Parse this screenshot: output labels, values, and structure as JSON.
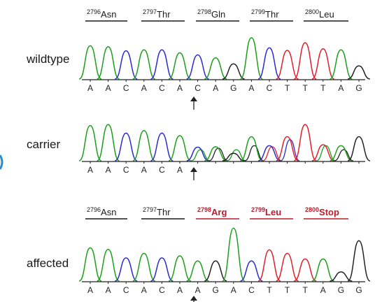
{
  "colors": {
    "A": "#1aa01a",
    "C": "#2a2ad0",
    "G": "#222222",
    "T": "#e0202a",
    "mutation_label": "#c0192a",
    "normal_label": "#1a1a1a",
    "axis": "#222222"
  },
  "codon_sets": [
    {
      "id": "top",
      "codons": [
        {
          "num": "2796",
          "aa": "Asn",
          "mutant": false
        },
        {
          "num": "2797",
          "aa": "Thr",
          "mutant": false
        },
        {
          "num": "2798",
          "aa": "Gln",
          "mutant": false
        },
        {
          "num": "2799",
          "aa": "Thr",
          "mutant": false
        },
        {
          "num": "2800",
          "aa": "Leu",
          "mutant": false
        }
      ]
    },
    {
      "id": "bottom",
      "codons": [
        {
          "num": "2796",
          "aa": "Asn",
          "mutant": false
        },
        {
          "num": "2797",
          "aa": "Thr",
          "mutant": false
        },
        {
          "num": "2798",
          "aa": "Arg",
          "mutant": true
        },
        {
          "num": "2799",
          "aa": "Leu",
          "mutant": true
        },
        {
          "num": "2800",
          "aa": "Stop",
          "mutant": true
        }
      ]
    }
  ],
  "traces": [
    {
      "label": "wildtype",
      "bases": [
        "A",
        "A",
        "C",
        "A",
        "C",
        "A",
        "C",
        "A",
        "G",
        "A",
        "C",
        "T",
        "T",
        "T",
        "A",
        "G"
      ],
      "peaks": [
        {
          "b": "A",
          "h": 0.66
        },
        {
          "b": "A",
          "h": 0.64
        },
        {
          "b": "C",
          "h": 0.56
        },
        {
          "b": "A",
          "h": 0.58
        },
        {
          "b": "C",
          "h": 0.58
        },
        {
          "b": "A",
          "h": 0.52
        },
        {
          "b": "C",
          "h": 0.48
        },
        {
          "b": "A",
          "h": 0.42
        },
        {
          "b": "G",
          "h": 0.3
        },
        {
          "b": "A",
          "h": 0.82
        },
        {
          "b": "C",
          "h": 0.62
        },
        {
          "b": "T",
          "h": 0.57
        },
        {
          "b": "T",
          "h": 0.72
        },
        {
          "b": "T",
          "h": 0.6
        },
        {
          "b": "A",
          "h": 0.58
        },
        {
          "b": "G",
          "h": 0.26
        }
      ]
    },
    {
      "label": "carrier",
      "bases": [
        "A",
        "A",
        "C",
        "A",
        "C",
        "A"
      ],
      "peaks": [
        {
          "b": "A",
          "h": 0.7
        },
        {
          "b": "A",
          "h": 0.72
        },
        {
          "b": "C",
          "h": 0.55
        },
        {
          "b": "A",
          "h": 0.6
        },
        {
          "b": "C",
          "h": 0.55
        },
        {
          "b": "A",
          "h": 0.5
        },
        {
          "b": "C",
          "h": 0.27
        },
        {
          "b": "A",
          "h": 0.28
        },
        {
          "b": "G",
          "h": 0.15
        },
        {
          "b": "A",
          "h": 0.48
        },
        {
          "b": "C",
          "h": 0.3
        },
        {
          "b": "T",
          "h": 0.48
        },
        {
          "b": "T",
          "h": 0.72
        },
        {
          "b": "T",
          "h": 0.32
        },
        {
          "b": "A",
          "h": 0.3
        },
        {
          "b": "G",
          "h": 0.48
        }
      ],
      "secondary": [
        {
          "i": 6,
          "b": "A",
          "h": 0.22
        },
        {
          "i": 7,
          "b": "G",
          "h": 0.25
        },
        {
          "i": 8,
          "b": "A",
          "h": 0.22
        },
        {
          "i": 9,
          "b": "G",
          "h": 0.3
        },
        {
          "i": 10,
          "b": "T",
          "h": 0.28
        },
        {
          "i": 11,
          "b": "C",
          "h": 0.42
        },
        {
          "i": 13,
          "b": "A",
          "h": 0.3
        },
        {
          "i": 14,
          "b": "G",
          "h": 0.22
        }
      ]
    },
    {
      "label": "affected",
      "bases": [
        "A",
        "A",
        "C",
        "A",
        "C",
        "A",
        "A",
        "G",
        "A",
        "C",
        "T",
        "T",
        "T",
        "A",
        "G",
        "G"
      ],
      "peaks": [
        {
          "b": "A",
          "h": 0.66
        },
        {
          "b": "A",
          "h": 0.63
        },
        {
          "b": "C",
          "h": 0.46
        },
        {
          "b": "A",
          "h": 0.55
        },
        {
          "b": "C",
          "h": 0.46
        },
        {
          "b": "A",
          "h": 0.5
        },
        {
          "b": "A",
          "h": 0.4
        },
        {
          "b": "G",
          "h": 0.4
        },
        {
          "b": "A",
          "h": 1.05
        },
        {
          "b": "C",
          "h": 0.4
        },
        {
          "b": "T",
          "h": 0.62
        },
        {
          "b": "T",
          "h": 0.55
        },
        {
          "b": "T",
          "h": 0.44
        },
        {
          "b": "A",
          "h": 0.44
        },
        {
          "b": "G",
          "h": 0.18
        },
        {
          "b": "G",
          "h": 0.8
        }
      ]
    }
  ]
}
